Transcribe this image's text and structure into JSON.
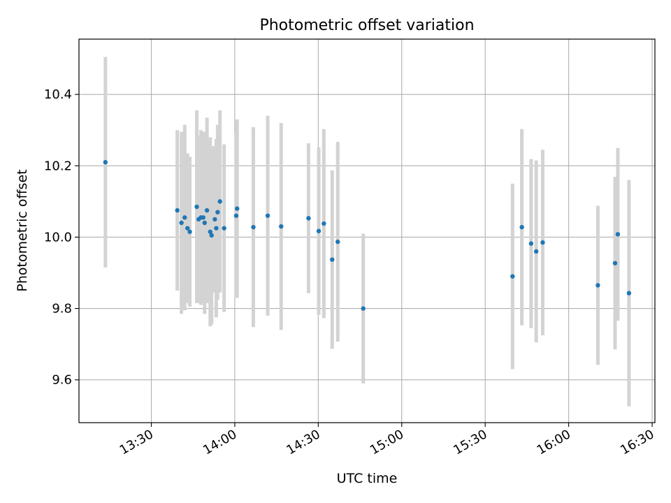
{
  "chart_data": {
    "type": "scatter",
    "title": "Photometric offset variation",
    "xlabel": "UTC time",
    "ylabel": "Photometric offset",
    "xlim": [
      "13:04",
      "16:31"
    ],
    "ylim": [
      9.48,
      10.555
    ],
    "grid": true,
    "x_ticks": [
      "13:30",
      "14:00",
      "14:30",
      "15:00",
      "15:30",
      "16:00",
      "16:30"
    ],
    "y_ticks": [
      9.6,
      9.8,
      10.0,
      10.2,
      10.4
    ],
    "series": [
      {
        "marker_color": "#1f77b4",
        "errorbar_color": "#d3d3d3",
        "points": [
          {
            "x": "13:13:30",
            "y": 10.21,
            "yerr": 0.295
          },
          {
            "x": "13:39:20",
            "y": 10.075,
            "yerr": 0.225
          },
          {
            "x": "13:40:50",
            "y": 10.04,
            "yerr": 0.255
          },
          {
            "x": "13:42:00",
            "y": 10.055,
            "yerr": 0.26
          },
          {
            "x": "13:43:00",
            "y": 10.025,
            "yerr": 0.21
          },
          {
            "x": "13:43:50",
            "y": 10.015,
            "yerr": 0.21
          },
          {
            "x": "13:46:20",
            "y": 10.085,
            "yerr": 0.27
          },
          {
            "x": "13:47:00",
            "y": 10.05,
            "yerr": 0.235
          },
          {
            "x": "13:47:50",
            "y": 10.055,
            "yerr": 0.245
          },
          {
            "x": "13:48:40",
            "y": 10.055,
            "yerr": 0.24
          },
          {
            "x": "13:49:10",
            "y": 10.04,
            "yerr": 0.255
          },
          {
            "x": "13:50:00",
            "y": 10.075,
            "yerr": 0.26
          },
          {
            "x": "13:51:10",
            "y": 10.015,
            "yerr": 0.265
          },
          {
            "x": "13:51:40",
            "y": 10.005,
            "yerr": 0.25
          },
          {
            "x": "13:52:50",
            "y": 10.05,
            "yerr": 0.205
          },
          {
            "x": "13:53:20",
            "y": 10.025,
            "yerr": 0.25
          },
          {
            "x": "13:53:50",
            "y": 10.07,
            "yerr": 0.245
          },
          {
            "x": "13:54:40",
            "y": 10.1,
            "yerr": 0.255
          },
          {
            "x": "13:56:10",
            "y": 10.025,
            "yerr": 0.235
          },
          {
            "x": "14:00:30",
            "y": 10.06,
            "yerr": 0.23
          },
          {
            "x": "14:00:50",
            "y": 10.08,
            "yerr": 0.25
          },
          {
            "x": "14:06:40",
            "y": 10.028,
            "yerr": 0.28
          },
          {
            "x": "14:11:50",
            "y": 10.06,
            "yerr": 0.28
          },
          {
            "x": "14:16:40",
            "y": 10.03,
            "yerr": 0.29
          },
          {
            "x": "14:26:30",
            "y": 10.053,
            "yerr": 0.21
          },
          {
            "x": "14:30:10",
            "y": 10.017,
            "yerr": 0.235
          },
          {
            "x": "14:32:00",
            "y": 10.038,
            "yerr": 0.265
          },
          {
            "x": "14:35:00",
            "y": 9.937,
            "yerr": 0.25
          },
          {
            "x": "14:37:00",
            "y": 9.987,
            "yerr": 0.28
          },
          {
            "x": "14:46:10",
            "y": 9.8,
            "yerr": 0.21
          },
          {
            "x": "15:39:50",
            "y": 9.89,
            "yerr": 0.26
          },
          {
            "x": "15:43:10",
            "y": 10.028,
            "yerr": 0.275
          },
          {
            "x": "15:46:30",
            "y": 9.982,
            "yerr": 0.237
          },
          {
            "x": "15:48:20",
            "y": 9.96,
            "yerr": 0.255
          },
          {
            "x": "15:50:40",
            "y": 9.985,
            "yerr": 0.26
          },
          {
            "x": "16:10:30",
            "y": 9.865,
            "yerr": 0.223
          },
          {
            "x": "16:16:40",
            "y": 9.927,
            "yerr": 0.242
          },
          {
            "x": "16:17:40",
            "y": 10.008,
            "yerr": 0.242
          },
          {
            "x": "16:21:40",
            "y": 9.843,
            "yerr": 0.317
          }
        ]
      }
    ]
  }
}
